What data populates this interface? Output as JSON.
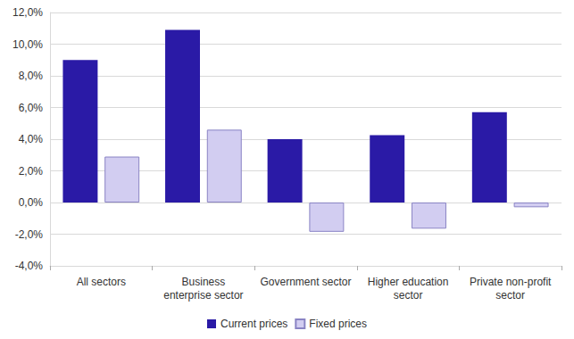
{
  "chart_data": {
    "type": "bar",
    "categories": [
      "All sectors",
      "Business\nenterprise sector",
      "Government sector",
      "Higher education\nsector",
      "Private non-profit\nsector"
    ],
    "series": [
      {
        "name": "Current prices",
        "color": "#2a1aa6",
        "values": [
          9.0,
          10.9,
          4.0,
          4.25,
          5.7
        ]
      },
      {
        "name": "Fixed prices",
        "color": "#d2cdf1",
        "values": [
          2.9,
          4.6,
          -1.85,
          -1.65,
          -0.3
        ]
      }
    ],
    "ylim": [
      -4,
      12
    ],
    "yticks": [
      {
        "value": -4,
        "label": "-4,0%"
      },
      {
        "value": -2,
        "label": "-2,0%"
      },
      {
        "value": 0,
        "label": "0,0%"
      },
      {
        "value": 2,
        "label": "2,0%"
      },
      {
        "value": 4,
        "label": "4,0%"
      },
      {
        "value": 6,
        "label": "6,0%"
      },
      {
        "value": 8,
        "label": "8,0%"
      },
      {
        "value": 10,
        "label": "10,0%"
      },
      {
        "value": 12,
        "label": "12,0%"
      }
    ],
    "grid": true,
    "legend": "bottom"
  }
}
